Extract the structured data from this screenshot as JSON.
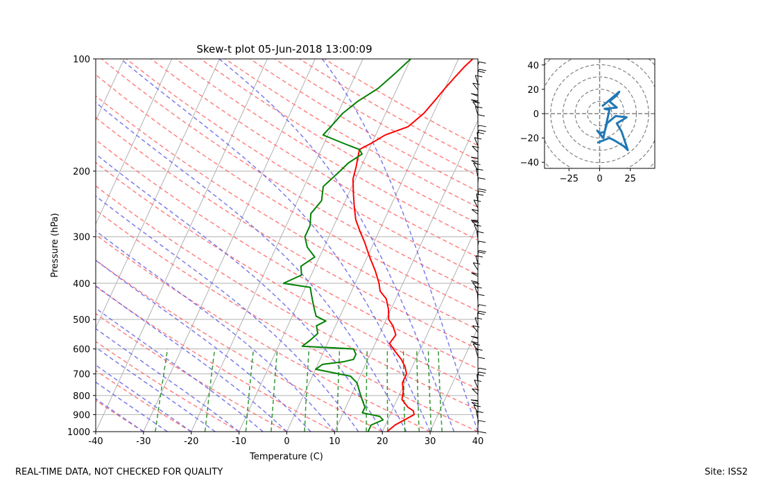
{
  "chart_data": [
    {
      "type": "line",
      "title": "Skew-t plot 05-Jun-2018 13:00:09",
      "xlabel": "Temperature (C)",
      "ylabel": "Pressure (hPa)",
      "xlim": [
        -40,
        40
      ],
      "ylim": [
        1000,
        100
      ],
      "y_scale": "log",
      "x_ticks": [
        -40,
        -30,
        -20,
        -10,
        0,
        10,
        20,
        30,
        40
      ],
      "y_ticks": [
        100,
        200,
        300,
        400,
        500,
        600,
        700,
        800,
        900,
        1000
      ],
      "grid": true,
      "series": [
        {
          "color": "#ff0000",
          "points": [
            [
              1000,
              21
            ],
            [
              960,
              22
            ],
            [
              930,
              23.5
            ],
            [
              900,
              25
            ],
            [
              880,
              24.5
            ],
            [
              860,
              23
            ],
            [
              820,
              21
            ],
            [
              780,
              20.5
            ],
            [
              740,
              19.5
            ],
            [
              700,
              19.5
            ],
            [
              670,
              18.5
            ],
            [
              640,
              17
            ],
            [
              610,
              15
            ],
            [
              580,
              13
            ],
            [
              550,
              13.5
            ],
            [
              520,
              12
            ],
            [
              500,
              10.5
            ],
            [
              470,
              9.5
            ],
            [
              440,
              8
            ],
            [
              420,
              6
            ],
            [
              400,
              5
            ],
            [
              370,
              3
            ],
            [
              340,
              0.5
            ],
            [
              310,
              -2
            ],
            [
              290,
              -4
            ],
            [
              270,
              -6
            ],
            [
              250,
              -7.5
            ],
            [
              230,
              -9
            ],
            [
              210,
              -10.5
            ],
            [
              195,
              -11
            ],
            [
              185,
              -11.5
            ],
            [
              175,
              -12
            ],
            [
              168,
              -10
            ],
            [
              160,
              -8
            ],
            [
              152,
              -4
            ],
            [
              140,
              -2
            ],
            [
              130,
              -1
            ],
            [
              120,
              0
            ],
            [
              112,
              1
            ],
            [
              105,
              2
            ],
            [
              100,
              3
            ]
          ]
        },
        {
          "color": "#008000",
          "points": [
            [
              1000,
              17
            ],
            [
              960,
              17
            ],
            [
              930,
              19
            ],
            [
              910,
              18
            ],
            [
              890,
              14
            ],
            [
              860,
              14
            ],
            [
              830,
              13
            ],
            [
              800,
              12
            ],
            [
              770,
              11
            ],
            [
              740,
              10
            ],
            [
              710,
              8
            ],
            [
              680,
              0
            ],
            [
              660,
              1
            ],
            [
              650,
              5
            ],
            [
              640,
              7
            ],
            [
              620,
              7
            ],
            [
              600,
              6
            ],
            [
              590,
              -5
            ],
            [
              570,
              -4
            ],
            [
              545,
              -3
            ],
            [
              520,
              -4
            ],
            [
              505,
              -2.5
            ],
            [
              490,
              -5
            ],
            [
              470,
              -6
            ],
            [
              450,
              -7
            ],
            [
              430,
              -8
            ],
            [
              410,
              -9
            ],
            [
              400,
              -15
            ],
            [
              380,
              -12
            ],
            [
              360,
              -13
            ],
            [
              340,
              -11
            ],
            [
              320,
              -13.5
            ],
            [
              300,
              -15
            ],
            [
              280,
              -15
            ],
            [
              260,
              -16
            ],
            [
              240,
              -15
            ],
            [
              220,
              -16
            ],
            [
              200,
              -14
            ],
            [
              190,
              -13
            ],
            [
              180,
              -11
            ],
            [
              175,
              -12
            ],
            [
              170,
              -15
            ],
            [
              165,
              -18
            ],
            [
              160,
              -21
            ],
            [
              150,
              -20
            ],
            [
              140,
              -19
            ],
            [
              130,
              -17
            ],
            [
              120,
              -14
            ],
            [
              110,
              -12
            ],
            [
              100,
              -10
            ]
          ]
        }
      ]
    },
    {
      "type": "line",
      "title": "",
      "xlim": [
        -45,
        45
      ],
      "ylim": [
        -45,
        45
      ],
      "x_ticks": [
        -25,
        0,
        25
      ],
      "y_ticks": [
        -40,
        -20,
        0,
        20,
        40
      ],
      "series": [
        {
          "color": "#1f77b4",
          "points": [
            [
              -2,
              -24
            ],
            [
              3,
              -22
            ],
            [
              8,
              -20
            ],
            [
              12,
              -22
            ],
            [
              20,
              -27
            ],
            [
              23,
              -30
            ],
            [
              18,
              -15
            ],
            [
              14,
              -8
            ],
            [
              19,
              -5
            ],
            [
              22,
              -3
            ],
            [
              13,
              -2
            ],
            [
              6,
              -8
            ],
            [
              4,
              -15
            ],
            [
              0,
              -16
            ],
            [
              -2,
              -14
            ],
            [
              3,
              -20
            ],
            [
              6,
              -6
            ],
            [
              8,
              3
            ],
            [
              4,
              4
            ],
            [
              14,
              5
            ],
            [
              8,
              10
            ],
            [
              14,
              15
            ],
            [
              16,
              18
            ],
            [
              2,
              6
            ]
          ]
        }
      ]
    }
  ],
  "footer": {
    "left": "REAL-TIME DATA, NOT CHECKED FOR QUALITY",
    "right": "Site: ISS2"
  }
}
